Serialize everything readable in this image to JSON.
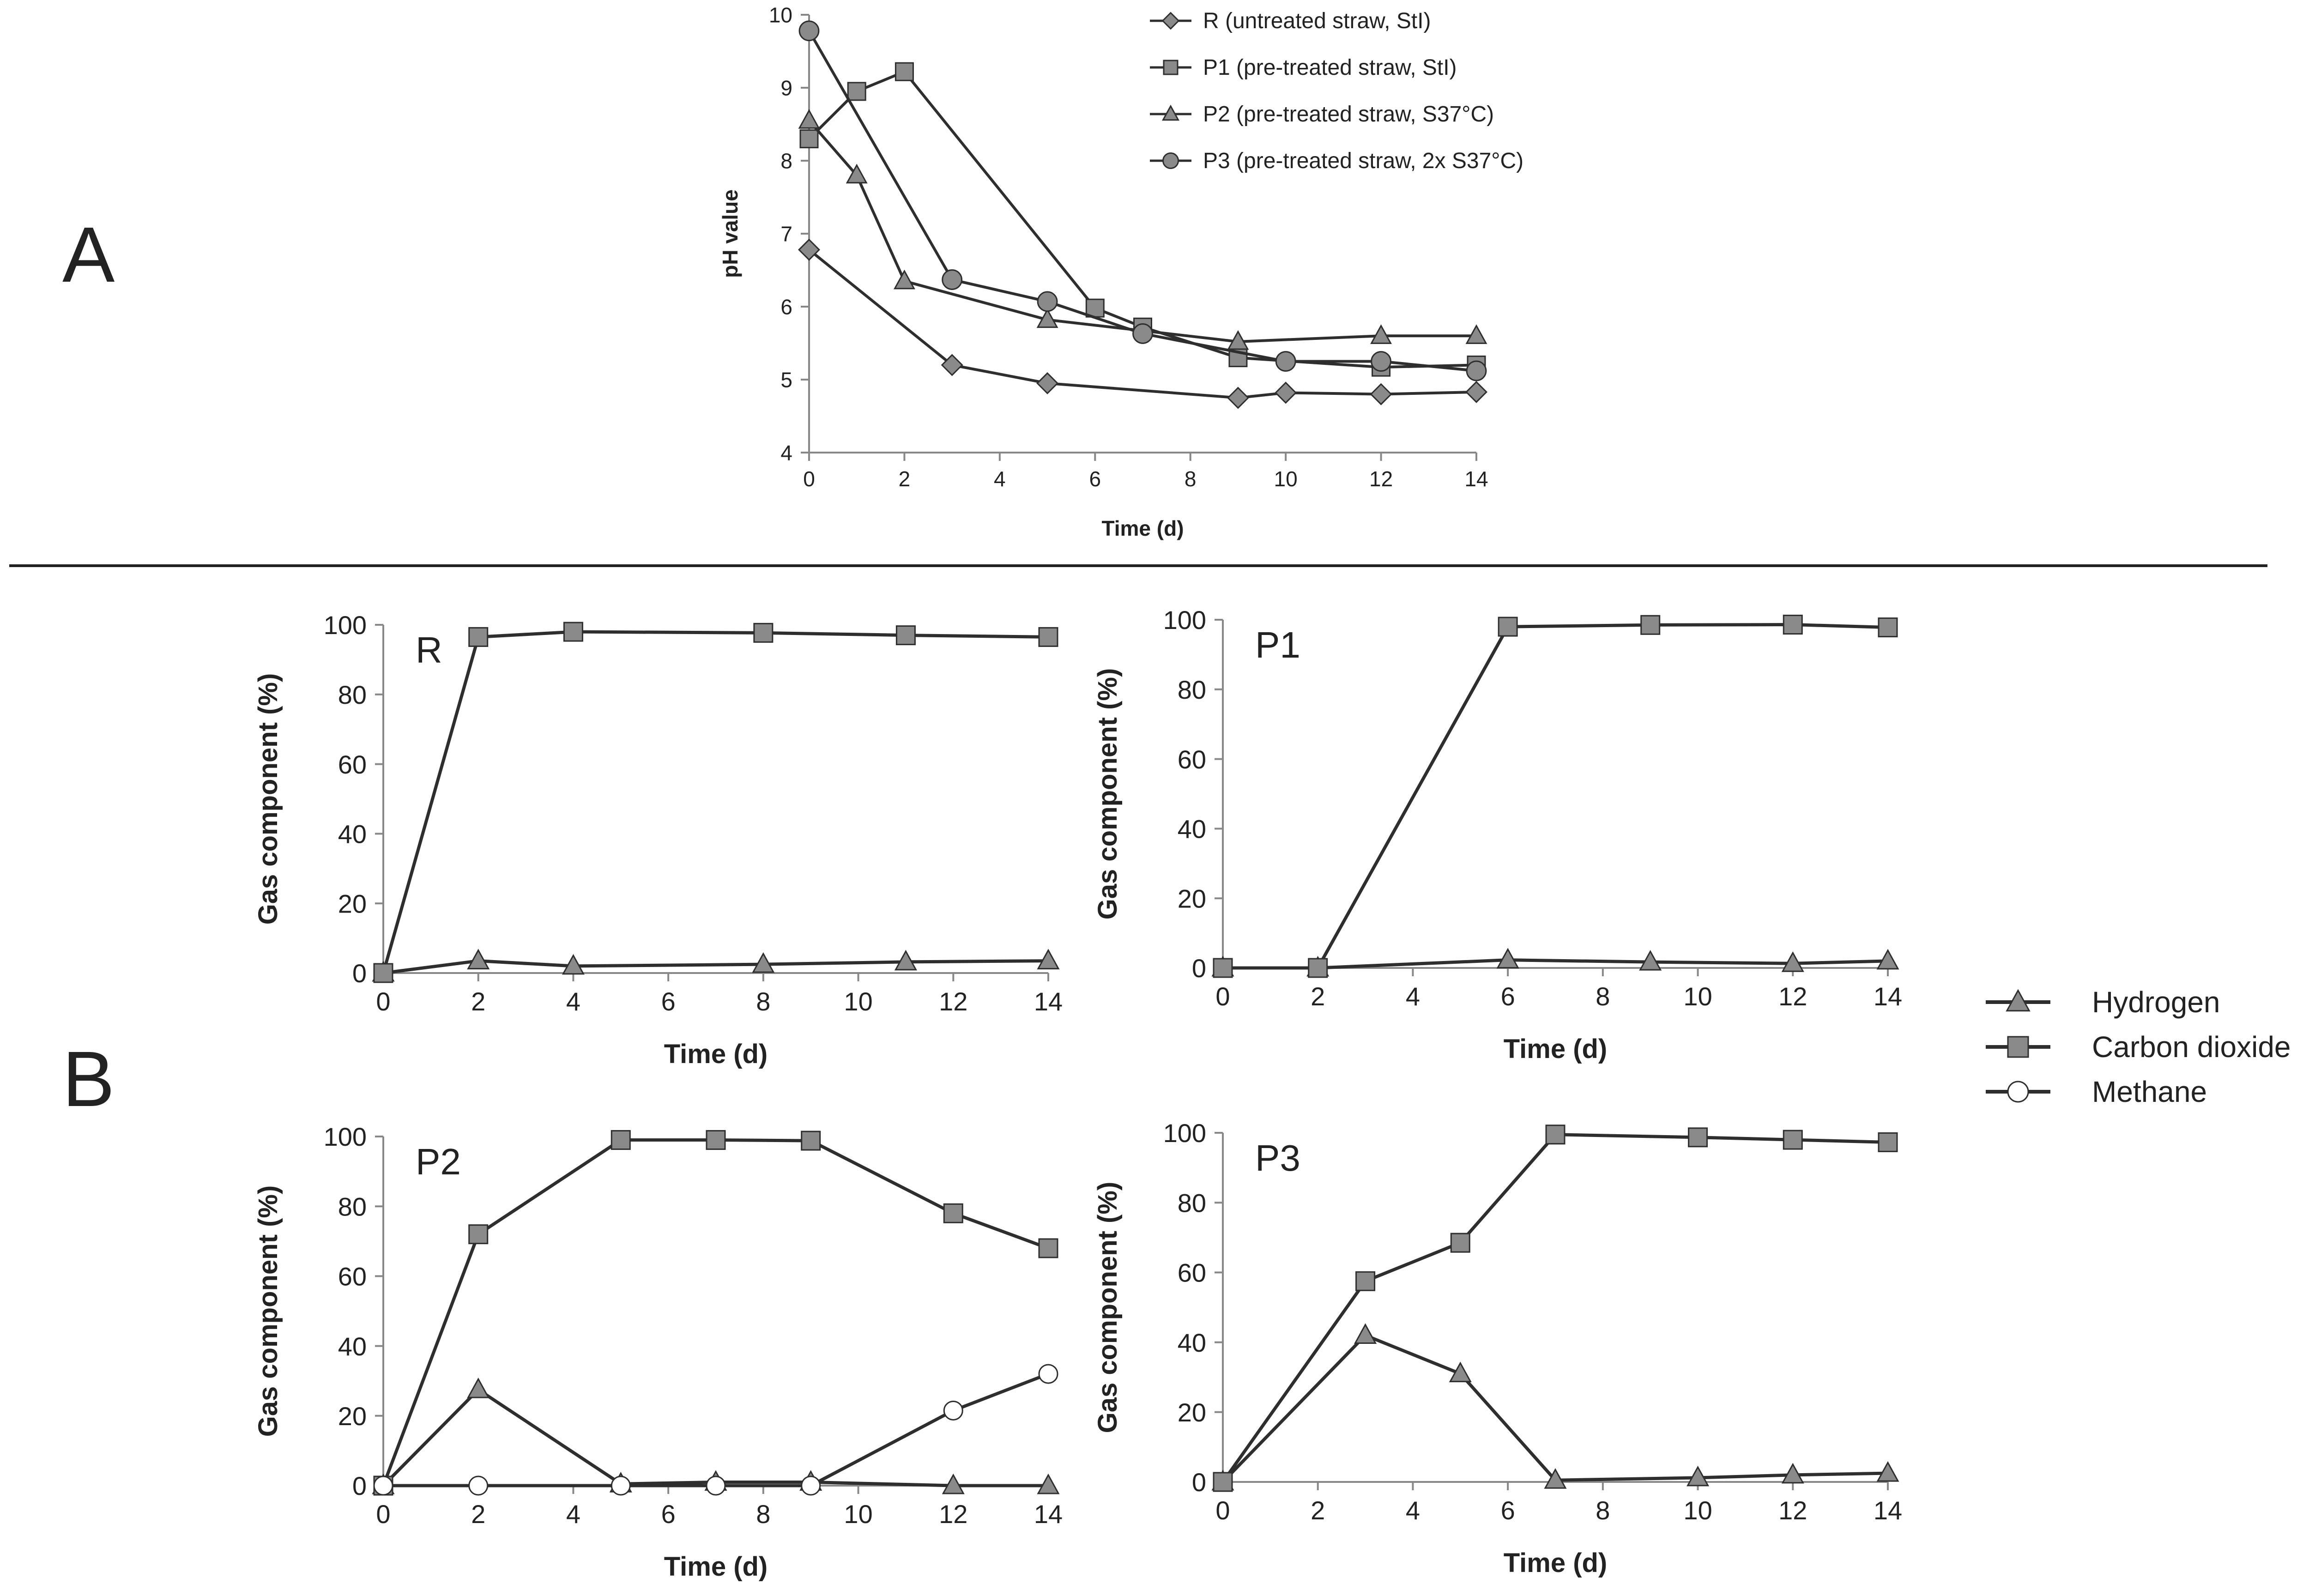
{
  "figure": {
    "letters": {
      "a": "A",
      "b": "B"
    },
    "colors": {
      "line": "#2e2e2e",
      "marker_fill": "#8a8a8a",
      "axis": "#888888",
      "divider": "#222222"
    }
  },
  "chart_data": [
    {
      "id": "A",
      "type": "line",
      "title": "",
      "xlabel": "Time (d)",
      "ylabel": "pH value",
      "xlim": [
        0,
        14
      ],
      "ylim": [
        4,
        10
      ],
      "xticks": [
        0,
        2,
        4,
        6,
        8,
        10,
        12,
        14
      ],
      "yticks": [
        4,
        5,
        6,
        7,
        8,
        9,
        10
      ],
      "legend": "top-right",
      "series": [
        {
          "name": "R (untreated straw, StI)",
          "marker": "diamond",
          "x": [
            0,
            3,
            5,
            9,
            10,
            12,
            14
          ],
          "values": [
            6.78,
            5.2,
            4.95,
            4.75,
            4.82,
            4.8,
            4.83
          ]
        },
        {
          "name": "P1 (pre-treated straw, StI)",
          "marker": "square",
          "x": [
            0,
            1,
            2,
            6,
            7,
            9,
            12,
            14
          ],
          "values": [
            8.3,
            8.95,
            9.22,
            5.98,
            5.72,
            5.3,
            5.17,
            5.2
          ]
        },
        {
          "name": "P2 (pre-treated straw, S37°C)",
          "marker": "triangle",
          "x": [
            0,
            1,
            2,
            5,
            9,
            12,
            14
          ],
          "values": [
            8.55,
            7.8,
            6.35,
            5.82,
            5.52,
            5.6,
            5.6
          ]
        },
        {
          "name": "P3 (pre-treated straw, 2x S37°C)",
          "marker": "circle",
          "x": [
            0,
            3,
            5,
            7,
            10,
            12,
            14
          ],
          "values": [
            9.78,
            6.37,
            6.07,
            5.63,
            5.25,
            5.25,
            5.12
          ]
        }
      ]
    },
    {
      "id": "R",
      "type": "line",
      "title": "R",
      "xlabel": "Time (d)",
      "ylabel": "Gas component (%)",
      "xlim": [
        0,
        14
      ],
      "ylim": [
        0,
        100
      ],
      "xticks": [
        0,
        2,
        4,
        6,
        8,
        10,
        12,
        14
      ],
      "yticks": [
        0,
        20,
        40,
        60,
        80,
        100
      ],
      "series": [
        {
          "name": "Hydrogen",
          "marker": "triangle",
          "x": [
            0,
            2,
            4,
            8,
            11,
            14
          ],
          "values": [
            0,
            3.5,
            2,
            2.5,
            3.2,
            3.5
          ]
        },
        {
          "name": "Carbon dioxide",
          "marker": "square",
          "x": [
            0,
            2,
            4,
            8,
            11,
            14
          ],
          "values": [
            0,
            96.5,
            98,
            97.7,
            97,
            96.5
          ]
        }
      ]
    },
    {
      "id": "P1",
      "type": "line",
      "title": "P1",
      "xlabel": "Time (d)",
      "ylabel": "Gas component (%)",
      "xlim": [
        0,
        14
      ],
      "ylim": [
        0,
        100
      ],
      "xticks": [
        0,
        2,
        4,
        6,
        8,
        10,
        12,
        14
      ],
      "yticks": [
        0,
        20,
        40,
        60,
        80,
        100
      ],
      "series": [
        {
          "name": "Hydrogen",
          "marker": "triangle",
          "x": [
            0,
            2,
            6,
            9,
            12,
            14
          ],
          "values": [
            0,
            0,
            2.3,
            1.7,
            1.3,
            2
          ]
        },
        {
          "name": "Carbon dioxide",
          "marker": "square",
          "x": [
            0,
            2,
            6,
            9,
            12,
            14
          ],
          "values": [
            0,
            0,
            98,
            98.5,
            98.6,
            97.8
          ]
        }
      ]
    },
    {
      "id": "P2",
      "type": "line",
      "title": "P2",
      "xlabel": "Time (d)",
      "ylabel": "Gas component (%)",
      "xlim": [
        0,
        14
      ],
      "ylim": [
        0,
        100
      ],
      "xticks": [
        0,
        2,
        4,
        6,
        8,
        10,
        12,
        14
      ],
      "yticks": [
        0,
        20,
        40,
        60,
        80,
        100
      ],
      "series": [
        {
          "name": "Hydrogen",
          "marker": "triangle",
          "x": [
            0,
            2,
            5,
            7,
            9,
            12,
            14
          ],
          "values": [
            0,
            27.5,
            0.5,
            1,
            1,
            0,
            0
          ]
        },
        {
          "name": "Carbon dioxide",
          "marker": "square",
          "x": [
            0,
            2,
            5,
            7,
            9,
            12,
            14
          ],
          "values": [
            0,
            72,
            99,
            99,
            98.8,
            78,
            68
          ]
        },
        {
          "name": "Methane",
          "marker": "open-circle",
          "x": [
            0,
            2,
            5,
            7,
            9,
            12,
            14
          ],
          "values": [
            0,
            0,
            0,
            0,
            0,
            21.5,
            32
          ]
        }
      ]
    },
    {
      "id": "P3",
      "type": "line",
      "title": "P3",
      "xlabel": "Time (d)",
      "ylabel": "Gas component (%)",
      "xlim": [
        0,
        14
      ],
      "ylim": [
        0,
        100
      ],
      "xticks": [
        0,
        2,
        4,
        6,
        8,
        10,
        12,
        14
      ],
      "yticks": [
        0,
        20,
        40,
        60,
        80,
        100
      ],
      "series": [
        {
          "name": "Hydrogen",
          "marker": "triangle",
          "x": [
            0,
            3,
            5,
            7,
            10,
            12,
            14
          ],
          "values": [
            0,
            42,
            31,
            0.5,
            1.2,
            2,
            2.5
          ]
        },
        {
          "name": "Carbon dioxide",
          "marker": "square",
          "x": [
            0,
            3,
            5,
            7,
            10,
            12,
            14
          ],
          "values": [
            0,
            57.5,
            68.5,
            99.5,
            98.7,
            98,
            97.3
          ]
        }
      ]
    }
  ],
  "gas_legend": [
    {
      "label": "Hydrogen",
      "marker": "triangle"
    },
    {
      "label": "Carbon dioxide",
      "marker": "square"
    },
    {
      "label": "Methane",
      "marker": "open-circle"
    }
  ]
}
